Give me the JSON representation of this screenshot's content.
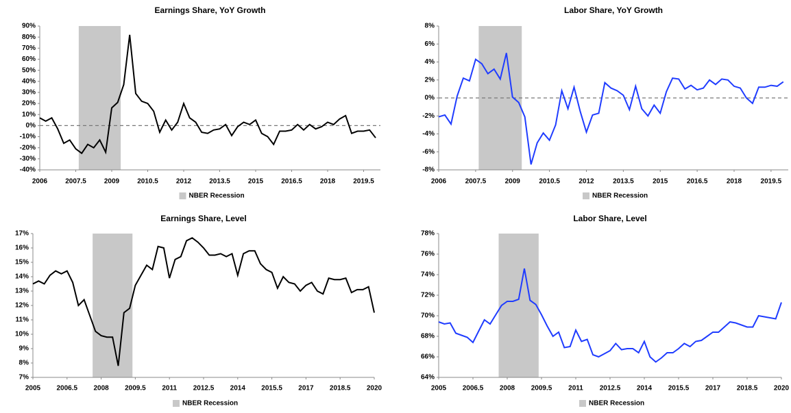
{
  "chart_data": [
    {
      "type": "line",
      "title": "Earnings Share, YoY Growth",
      "x": [
        2006,
        2006.25,
        2006.5,
        2006.75,
        2007,
        2007.25,
        2007.5,
        2007.75,
        2008,
        2008.25,
        2008.5,
        2008.75,
        2009,
        2009.25,
        2009.5,
        2009.75,
        2010,
        2010.25,
        2010.5,
        2010.75,
        2011,
        2011.25,
        2011.5,
        2011.75,
        2012,
        2012.25,
        2012.5,
        2012.75,
        2013,
        2013.25,
        2013.5,
        2013.75,
        2014,
        2014.25,
        2014.5,
        2014.75,
        2015,
        2015.25,
        2015.5,
        2015.75,
        2016,
        2016.25,
        2016.5,
        2016.75,
        2017,
        2017.25,
        2017.5,
        2017.75,
        2018,
        2018.25,
        2018.5,
        2018.75,
        2019,
        2019.25,
        2019.5,
        2019.75,
        2020
      ],
      "series": [
        {
          "color": "#000000",
          "values": [
            7,
            4,
            7,
            -3,
            -16,
            -13,
            -21,
            -25,
            -17,
            -20,
            -13,
            -24,
            16,
            21,
            37,
            82,
            29,
            22,
            20,
            13,
            -6,
            5,
            -4,
            3,
            20,
            7,
            3,
            -6,
            -7,
            -4,
            -3,
            1,
            -9,
            -1,
            3,
            1,
            5,
            -7,
            -10,
            -17,
            -5,
            -5,
            -4,
            1,
            -4,
            1,
            -3,
            -1,
            3,
            1,
            6,
            9,
            -7,
            -5,
            -5,
            -4,
            -11
          ]
        }
      ],
      "recession": {
        "name": "NBER Recession",
        "color": "#c8c8c8",
        "x": [
          2007.625,
          2009.375
        ]
      },
      "hline": 0,
      "xlim": [
        2006,
        2020.2
      ],
      "xticks": [
        2006,
        2007.5,
        2009,
        2010.5,
        2012,
        2013.5,
        2015,
        2016.5,
        2018,
        2019.5
      ],
      "ylim": [
        -40,
        90
      ],
      "yticks": [
        {
          "value": -40,
          "label": "-40%"
        },
        {
          "value": -30,
          "label": "-30%"
        },
        {
          "value": -20,
          "label": "-20%"
        },
        {
          "value": -10,
          "label": "-10%"
        },
        {
          "value": 0,
          "label": "0%"
        },
        {
          "value": 10,
          "label": "10%"
        },
        {
          "value": 20,
          "label": "20%"
        },
        {
          "value": 30,
          "label": "30%"
        },
        {
          "value": 40,
          "label": "40%"
        },
        {
          "value": 50,
          "label": "50%"
        },
        {
          "value": 60,
          "label": "60%"
        },
        {
          "value": 70,
          "label": "70%"
        },
        {
          "value": 80,
          "label": "80%"
        },
        {
          "value": 90,
          "label": "90%"
        }
      ]
    },
    {
      "type": "line",
      "title": "Labor Share, YoY Growth",
      "x": [
        2006,
        2006.25,
        2006.5,
        2006.75,
        2007,
        2007.25,
        2007.5,
        2007.75,
        2008,
        2008.25,
        2008.5,
        2008.75,
        2009,
        2009.25,
        2009.5,
        2009.75,
        2010,
        2010.25,
        2010.5,
        2010.75,
        2011,
        2011.25,
        2011.5,
        2011.75,
        2012,
        2012.25,
        2012.5,
        2012.75,
        2013,
        2013.25,
        2013.5,
        2013.75,
        2014,
        2014.25,
        2014.5,
        2014.75,
        2015,
        2015.25,
        2015.5,
        2015.75,
        2016,
        2016.25,
        2016.5,
        2016.75,
        2017,
        2017.25,
        2017.5,
        2017.75,
        2018,
        2018.25,
        2018.5,
        2018.75,
        2019,
        2019.25,
        2019.5,
        2019.75,
        2020
      ],
      "series": [
        {
          "color": "#1f3cff",
          "values": [
            -2.1,
            -1.9,
            -2.9,
            0.2,
            2.2,
            1.9,
            4.3,
            3.8,
            2.7,
            3.2,
            2.1,
            5.0,
            0.1,
            -0.5,
            -2.1,
            -7.4,
            -5.0,
            -3.9,
            -4.7,
            -3.0,
            0.8,
            -1.2,
            1.2,
            -1.5,
            -3.8,
            -1.9,
            -1.7,
            1.7,
            1.1,
            0.8,
            0.3,
            -1.3,
            1.3,
            -1.2,
            -2.0,
            -0.8,
            -1.7,
            0.7,
            2.2,
            2.1,
            1.0,
            1.4,
            0.9,
            1.1,
            2.0,
            1.5,
            2.1,
            2.0,
            1.3,
            1.1,
            0.0,
            -0.6,
            1.2,
            1.2,
            1.4,
            1.3,
            1.8
          ]
        }
      ],
      "recession": {
        "name": "NBER Recession",
        "color": "#c8c8c8",
        "x": [
          2007.625,
          2009.375
        ]
      },
      "hline": 0,
      "xlim": [
        2006,
        2020.2
      ],
      "xticks": [
        2006,
        2007.5,
        2009,
        2010.5,
        2012,
        2013.5,
        2015,
        2016.5,
        2018,
        2019.5
      ],
      "ylim": [
        -8,
        8
      ],
      "yticks": [
        {
          "value": -8,
          "label": "-8%"
        },
        {
          "value": -6,
          "label": "-6%"
        },
        {
          "value": -4,
          "label": "-4%"
        },
        {
          "value": -2,
          "label": "-2%"
        },
        {
          "value": 0,
          "label": "0%"
        },
        {
          "value": 2,
          "label": "2%"
        },
        {
          "value": 4,
          "label": "4%"
        },
        {
          "value": 6,
          "label": "6%"
        },
        {
          "value": 8,
          "label": "8%"
        }
      ]
    },
    {
      "type": "line",
      "title": "Earnings Share, Level",
      "x": [
        2005,
        2005.25,
        2005.5,
        2005.75,
        2006,
        2006.25,
        2006.5,
        2006.75,
        2007,
        2007.25,
        2007.5,
        2007.75,
        2008,
        2008.25,
        2008.5,
        2008.75,
        2009,
        2009.25,
        2009.5,
        2009.75,
        2010,
        2010.25,
        2010.5,
        2010.75,
        2011,
        2011.25,
        2011.5,
        2011.75,
        2012,
        2012.25,
        2012.5,
        2012.75,
        2013,
        2013.25,
        2013.5,
        2013.75,
        2014,
        2014.25,
        2014.5,
        2014.75,
        2015,
        2015.25,
        2015.5,
        2015.75,
        2016,
        2016.25,
        2016.5,
        2016.75,
        2017,
        2017.25,
        2017.5,
        2017.75,
        2018,
        2018.25,
        2018.5,
        2018.75,
        2019,
        2019.25,
        2019.5,
        2019.75,
        2020
      ],
      "series": [
        {
          "color": "#000000",
          "values": [
            13.5,
            13.7,
            13.5,
            14.1,
            14.4,
            14.2,
            14.4,
            13.6,
            12.0,
            12.4,
            11.3,
            10.2,
            9.9,
            9.8,
            9.8,
            7.8,
            11.5,
            11.8,
            13.4,
            14.1,
            14.8,
            14.5,
            16.1,
            16.0,
            13.9,
            15.2,
            15.4,
            16.5,
            16.7,
            16.4,
            16.0,
            15.5,
            15.5,
            15.6,
            15.4,
            15.6,
            14.1,
            15.6,
            15.8,
            15.8,
            14.9,
            14.5,
            14.3,
            13.2,
            14.0,
            13.6,
            13.5,
            13.0,
            13.4,
            13.6,
            13.0,
            12.8,
            13.9,
            13.8,
            13.8,
            13.9,
            12.9,
            13.1,
            13.1,
            13.3,
            11.5
          ]
        }
      ],
      "recession": {
        "name": "NBER Recession",
        "color": "#c8c8c8",
        "x": [
          2007.625,
          2009.375
        ]
      },
      "xlim": [
        2005,
        2020
      ],
      "xticks": [
        2005,
        2006.5,
        2008,
        2009.5,
        2011,
        2012.5,
        2014,
        2015.5,
        2017,
        2018.5,
        2020
      ],
      "ylim": [
        7,
        17
      ],
      "yticks": [
        {
          "value": 7,
          "label": "7%"
        },
        {
          "value": 8,
          "label": "8%"
        },
        {
          "value": 9,
          "label": "9%"
        },
        {
          "value": 10,
          "label": "10%"
        },
        {
          "value": 11,
          "label": "11%"
        },
        {
          "value": 12,
          "label": "12%"
        },
        {
          "value": 13,
          "label": "13%"
        },
        {
          "value": 14,
          "label": "14%"
        },
        {
          "value": 15,
          "label": "15%"
        },
        {
          "value": 16,
          "label": "16%"
        },
        {
          "value": 17,
          "label": "17%"
        }
      ]
    },
    {
      "type": "line",
      "title": "Labor Share, Level",
      "x": [
        2005,
        2005.25,
        2005.5,
        2005.75,
        2006,
        2006.25,
        2006.5,
        2006.75,
        2007,
        2007.25,
        2007.5,
        2007.75,
        2008,
        2008.25,
        2008.5,
        2008.75,
        2009,
        2009.25,
        2009.5,
        2009.75,
        2010,
        2010.25,
        2010.5,
        2010.75,
        2011,
        2011.25,
        2011.5,
        2011.75,
        2012,
        2012.25,
        2012.5,
        2012.75,
        2013,
        2013.25,
        2013.5,
        2013.75,
        2014,
        2014.25,
        2014.5,
        2014.75,
        2015,
        2015.25,
        2015.5,
        2015.75,
        2016,
        2016.25,
        2016.5,
        2016.75,
        2017,
        2017.25,
        2017.5,
        2017.75,
        2018,
        2018.25,
        2018.5,
        2018.75,
        2019,
        2019.25,
        2019.5,
        2019.75,
        2020
      ],
      "series": [
        {
          "color": "#1f3cff",
          "values": [
            69.4,
            69.2,
            69.3,
            68.3,
            68.1,
            67.9,
            67.4,
            68.5,
            69.6,
            69.2,
            70.1,
            71.0,
            71.4,
            71.4,
            71.6,
            74.6,
            71.5,
            71.1,
            70.1,
            69.0,
            68.0,
            68.4,
            66.9,
            67.0,
            68.6,
            67.5,
            67.7,
            66.2,
            66.0,
            66.3,
            66.6,
            67.3,
            66.7,
            66.8,
            66.8,
            66.4,
            67.5,
            66.0,
            65.5,
            65.9,
            66.4,
            66.4,
            66.8,
            67.3,
            67.0,
            67.5,
            67.6,
            68.0,
            68.4,
            68.4,
            68.9,
            69.4,
            69.3,
            69.1,
            68.9,
            68.9,
            70.0,
            69.9,
            69.8,
            69.7,
            71.3
          ]
        }
      ],
      "recession": {
        "name": "NBER Recession",
        "color": "#c8c8c8",
        "x": [
          2007.625,
          2009.375
        ]
      },
      "xlim": [
        2005,
        2020
      ],
      "xticks": [
        2005,
        2006.5,
        2008,
        2009.5,
        2011,
        2012.5,
        2014,
        2015.5,
        2017,
        2018.5,
        2020
      ],
      "ylim": [
        64,
        78
      ],
      "yticks": [
        {
          "value": 64,
          "label": "64%"
        },
        {
          "value": 66,
          "label": "66%"
        },
        {
          "value": 68,
          "label": "68%"
        },
        {
          "value": 70,
          "label": "70%"
        },
        {
          "value": 72,
          "label": "72%"
        },
        {
          "value": 74,
          "label": "74%"
        },
        {
          "value": 76,
          "label": "76%"
        },
        {
          "value": 78,
          "label": "78%"
        }
      ]
    }
  ]
}
